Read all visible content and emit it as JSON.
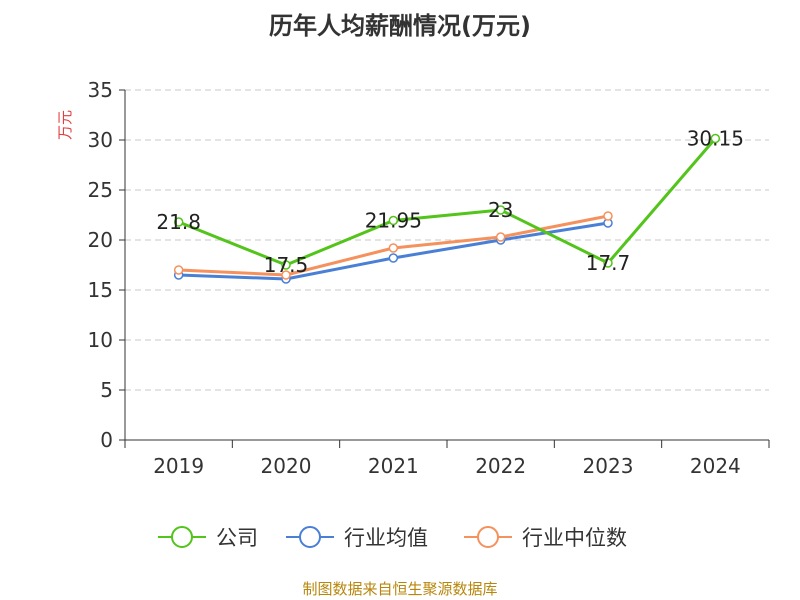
{
  "chart_data": {
    "type": "line",
    "title": "历年人均薪酬情况(万元)",
    "ylabel": "万元",
    "xlabel": "",
    "categories": [
      "2019",
      "2020",
      "2021",
      "2022",
      "2023",
      "2024"
    ],
    "ylim": [
      0,
      35
    ],
    "yticks": [
      0,
      5,
      10,
      15,
      20,
      25,
      30,
      35
    ],
    "grid": true,
    "legend_position": "bottom",
    "series": [
      {
        "name": "公司",
        "color": "#52c41a",
        "values": [
          21.8,
          17.5,
          21.95,
          23,
          17.7,
          30.15
        ],
        "labels": [
          "21.8",
          "17.5",
          "21.95",
          "23",
          "17.7",
          "30.15"
        ]
      },
      {
        "name": "行业均值",
        "color": "#4a7fd6",
        "values": [
          16.5,
          16.1,
          18.2,
          20.0,
          21.7,
          null
        ]
      },
      {
        "name": "行业中位数",
        "color": "#f5915c",
        "values": [
          17.0,
          16.5,
          19.2,
          20.3,
          22.4,
          null
        ]
      }
    ]
  },
  "source": "制图数据来自恒生聚源数据库"
}
